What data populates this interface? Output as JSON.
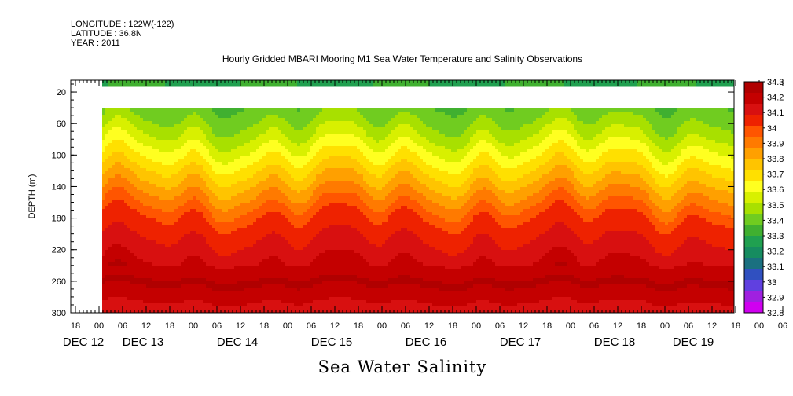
{
  "meta": {
    "longitude": "LONGITUDE : 122W(-122)",
    "latitude": "LATITUDE : 36.8N",
    "year": "YEAR : 2011"
  },
  "title": "Hourly Gridded MBARI Mooring M1 Sea Water Temperature and Salinity Observations",
  "xlabel": "Sea Water Salinity",
  "chart_data": {
    "type": "heatmap",
    "title": "Hourly Gridded MBARI Mooring M1 Sea Water Temperature and Salinity Observations",
    "xlabel": "Sea Water Salinity",
    "ylabel": "DEPTH (m)",
    "ylim": [
      300,
      5
    ],
    "y_ticks": [
      20,
      60,
      100,
      140,
      180,
      220,
      260,
      300
    ],
    "x_hour_ticks": [
      "18",
      "00",
      "06",
      "12",
      "18",
      "00",
      "06",
      "12",
      "18",
      "00",
      "06",
      "12",
      "18",
      "00",
      "06",
      "12",
      "18",
      "00",
      "06",
      "12",
      "18",
      "00",
      "06",
      "12",
      "18",
      "00",
      "06",
      "12",
      "18",
      "00",
      "06",
      "12"
    ],
    "x_day_labels": [
      "DEC 12",
      "DEC 13",
      "DEC 14",
      "DEC 15",
      "DEC 16",
      "DEC 17",
      "DEC 18",
      "DEC 19"
    ],
    "colorbar": {
      "levels": [
        "34.3",
        "34.2",
        "34.1",
        "34",
        "33.9",
        "33.8",
        "33.7",
        "33.6",
        "33.5",
        "33.4",
        "33.3",
        "33.2",
        "33.1",
        "33",
        "32.9",
        "32.8"
      ],
      "colors": [
        "#b00000",
        "#c40000",
        "#d81010",
        "#ee2200",
        "#ff5500",
        "#ff7a00",
        "#ffa000",
        "#ffc400",
        "#ffe000",
        "#ffff20",
        "#d8f000",
        "#a8e000",
        "#70cc20",
        "#40b030",
        "#20a050",
        "#168c60",
        "#1a7080",
        "#3050c0",
        "#6040e0",
        "#a020e0",
        "#d000f0"
      ],
      "colorbar_steps": [
        34.3,
        34.25,
        34.2,
        34.15,
        34.1,
        34.05,
        34.0,
        33.95,
        33.9,
        33.85,
        33.8,
        33.75,
        33.7,
        33.65,
        33.6,
        33.55,
        33.5,
        33.45,
        33.4,
        33.35,
        33.3,
        33.25,
        33.2,
        33.15,
        33.1,
        33.05,
        33.0,
        32.95,
        32.9,
        32.85,
        32.8
      ]
    },
    "profile": [
      {
        "depth": 10,
        "salinity": 33.3
      },
      {
        "depth": 40,
        "salinity": 33.4
      },
      {
        "depth": 60,
        "salinity": 33.45
      },
      {
        "depth": 80,
        "salinity": 33.55
      },
      {
        "depth": 100,
        "salinity": 33.65
      },
      {
        "depth": 120,
        "salinity": 33.75
      },
      {
        "depth": 140,
        "salinity": 33.85
      },
      {
        "depth": 160,
        "salinity": 33.95
      },
      {
        "depth": 180,
        "salinity": 34.05
      },
      {
        "depth": 200,
        "salinity": 34.1
      },
      {
        "depth": 220,
        "salinity": 34.15
      },
      {
        "depth": 240,
        "salinity": 34.2
      },
      {
        "depth": 260,
        "salinity": 34.28
      },
      {
        "depth": 280,
        "salinity": 34.2
      },
      {
        "depth": 300,
        "salinity": 34.15
      }
    ],
    "data_gap_depth": [
      12,
      40
    ]
  }
}
